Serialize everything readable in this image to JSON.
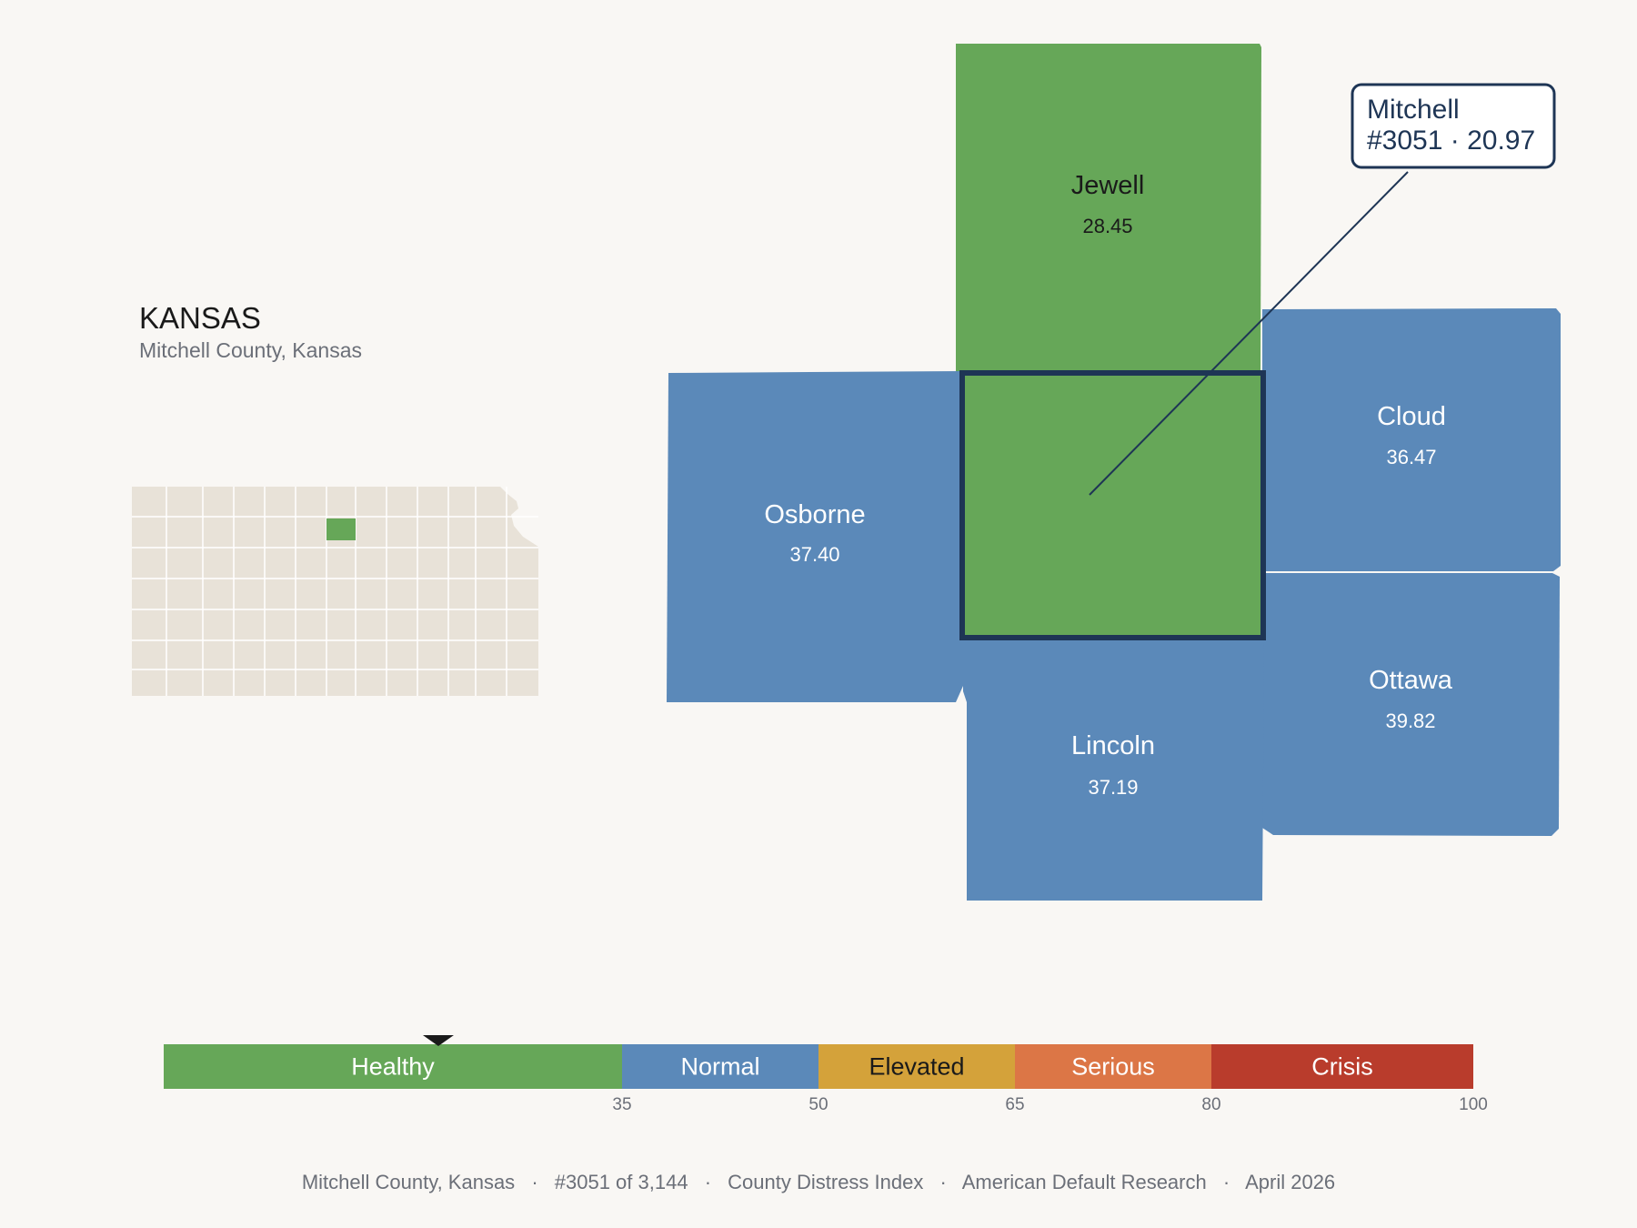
{
  "state": {
    "title": "KANSAS",
    "subtitle": "Mitchell County, Kansas"
  },
  "selected_county": {
    "name": "Mitchell",
    "rank_value": "#3051 · 20.97",
    "color": "#66a758"
  },
  "neighbors": [
    {
      "name": "Jewell",
      "value": "28.45",
      "category": "Healthy"
    },
    {
      "name": "Osborne",
      "value": "37.40",
      "category": "Normal"
    },
    {
      "name": "Cloud",
      "value": "36.47",
      "category": "Normal"
    },
    {
      "name": "Ottawa",
      "value": "39.82",
      "category": "Normal"
    },
    {
      "name": "Lincoln",
      "value": "37.19",
      "category": "Normal"
    }
  ],
  "legend": {
    "bands": [
      {
        "label": "Healthy",
        "from": 0,
        "to": 35,
        "color": "#66a758",
        "text_color": "#ffffff"
      },
      {
        "label": "Normal",
        "from": 35,
        "to": 50,
        "color": "#5b89b9",
        "text_color": "#ffffff"
      },
      {
        "label": "Elevated",
        "from": 50,
        "to": 65,
        "color": "#d4a23a",
        "text_color": "#1a1a1a"
      },
      {
        "label": "Serious",
        "from": 65,
        "to": 80,
        "color": "#dc7646",
        "text_color": "#ffffff"
      },
      {
        "label": "Crisis",
        "from": 80,
        "to": 100,
        "color": "#b93c2c",
        "text_color": "#ffffff"
      }
    ],
    "ticks": [
      "35",
      "50",
      "65",
      "80",
      "100"
    ],
    "marker_value": 20.97
  },
  "colors": {
    "healthy": "#66a758",
    "normal": "#5b89b9",
    "selected_outline": "#1e3555",
    "minimap_fill": "#e8e2d8",
    "background": "#f9f7f4"
  },
  "footer": {
    "county": "Mitchell County, Kansas",
    "rank": "#3051 of 3,144",
    "index": "County Distress Index",
    "source": "American Default Research",
    "date": "April 2026",
    "separator": "·"
  }
}
